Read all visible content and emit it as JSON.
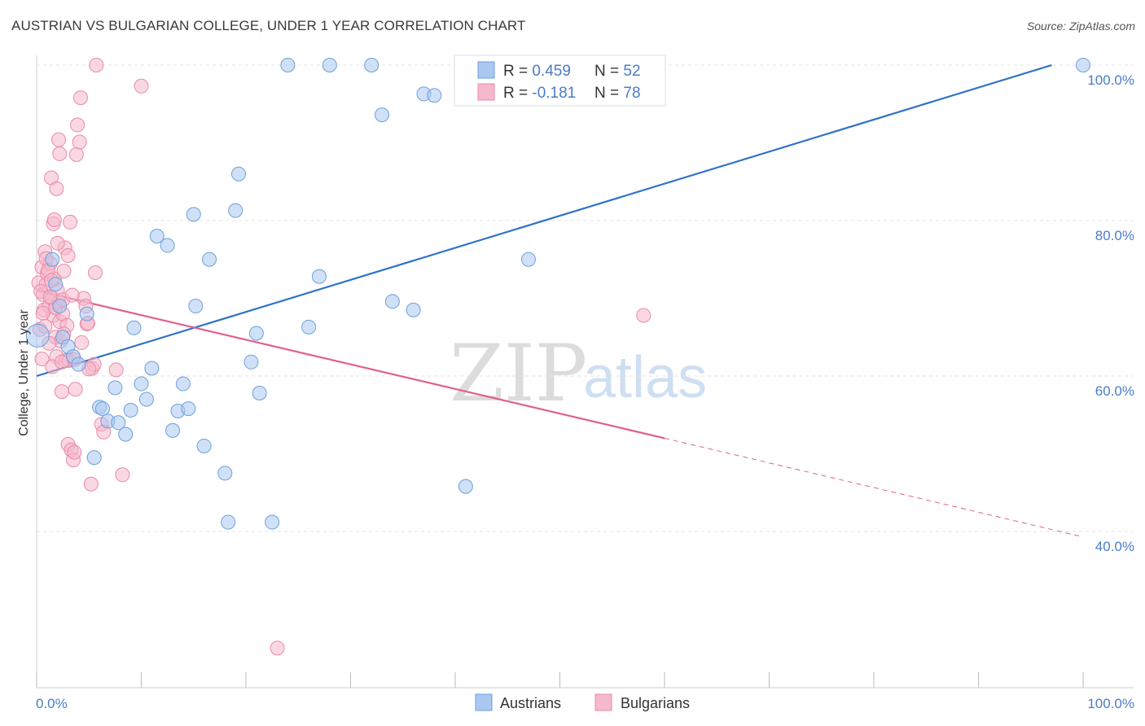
{
  "title": "AUSTRIAN VS BULGARIAN COLLEGE, UNDER 1 YEAR CORRELATION CHART",
  "source": "Source: ZipAtlas.com",
  "watermark": {
    "zip": "ZIP",
    "atlas": "atlas"
  },
  "colors": {
    "blue_fill": "#aac8f0",
    "blue_stroke": "#6e9fdc",
    "blue_line": "#2f72c8",
    "pink_fill": "#f6b8cc",
    "pink_stroke": "#e98aa8",
    "pink_line": "#e0608d",
    "tick_text": "#4a7cc9",
    "grid": "#e3e3e3"
  },
  "legend": {
    "rows": [
      {
        "r_label": "R = ",
        "r_value": "0.459",
        "n_label": "N = ",
        "n_value": "52"
      },
      {
        "r_label": "R = ",
        "r_value": "-0.181",
        "n_label": "N = ",
        "n_value": "78"
      }
    ]
  },
  "bottom_legend": {
    "austrians": "Austrians",
    "bulgarians": "Bulgarians"
  },
  "chart_data": {
    "type": "scatter",
    "title": "AUSTRIAN VS BULGARIAN COLLEGE, UNDER 1 YEAR CORRELATION CHART",
    "xlabel": "",
    "ylabel": "College, Under 1 year",
    "xlim": [
      0,
      100
    ],
    "ylim": [
      20,
      102
    ],
    "x_tick_labels": [
      "0.0%",
      "100.0%"
    ],
    "y_ticks": [
      40,
      60,
      80,
      100
    ],
    "y_tick_labels": [
      "40.0%",
      "60.0%",
      "80.0%",
      "100.0%"
    ],
    "series": [
      {
        "name": "Austrians",
        "r": 0.459,
        "n": 52,
        "trend": {
          "x": [
            0,
            97
          ],
          "y": [
            60,
            100
          ]
        },
        "points": [
          [
            0.1,
            65.2
          ],
          [
            1.5,
            75
          ],
          [
            1.8,
            71.8
          ],
          [
            2.2,
            69
          ],
          [
            2.5,
            65
          ],
          [
            3,
            63.8
          ],
          [
            3.5,
            62.5
          ],
          [
            4,
            61.5
          ],
          [
            4.8,
            68
          ],
          [
            5.5,
            49.5
          ],
          [
            6,
            56
          ],
          [
            6.3,
            55.8
          ],
          [
            6.8,
            54.2
          ],
          [
            7.5,
            58.5
          ],
          [
            7.8,
            54
          ],
          [
            8.5,
            52.5
          ],
          [
            9,
            55.6
          ],
          [
            9.3,
            66.2
          ],
          [
            10,
            59
          ],
          [
            10.5,
            57
          ],
          [
            11,
            61
          ],
          [
            11.5,
            78
          ],
          [
            12.5,
            76.8
          ],
          [
            13,
            53
          ],
          [
            13.5,
            55.5
          ],
          [
            14,
            59
          ],
          [
            14.5,
            55.8
          ],
          [
            15,
            80.8
          ],
          [
            15.2,
            69
          ],
          [
            16,
            51
          ],
          [
            16.5,
            75
          ],
          [
            18,
            47.5
          ],
          [
            18.3,
            41.2
          ],
          [
            19,
            81.3
          ],
          [
            19.3,
            86
          ],
          [
            20.5,
            61.8
          ],
          [
            21,
            65.5
          ],
          [
            21.3,
            57.8
          ],
          [
            22.5,
            41.2
          ],
          [
            24,
            100
          ],
          [
            26,
            66.3
          ],
          [
            27,
            72.8
          ],
          [
            28,
            100
          ],
          [
            32,
            100
          ],
          [
            33,
            93.6
          ],
          [
            34,
            69.6
          ],
          [
            36,
            68.5
          ],
          [
            37,
            96.3
          ],
          [
            38,
            96.1
          ],
          [
            41,
            45.8
          ],
          [
            47,
            75
          ],
          [
            100,
            100
          ]
        ]
      },
      {
        "name": "Bulgarians",
        "r": -0.181,
        "n": 78,
        "trend": {
          "x": [
            0,
            60
          ],
          "y": [
            71,
            52
          ]
        },
        "trend_dashed": {
          "x": [
            60,
            100
          ],
          "y": [
            52,
            39.3
          ]
        },
        "points": [
          [
            0.2,
            72
          ],
          [
            0.3,
            66
          ],
          [
            0.5,
            74
          ],
          [
            0.6,
            70.5
          ],
          [
            0.7,
            68.5
          ],
          [
            0.8,
            76
          ],
          [
            0.9,
            71.8
          ],
          [
            1,
            73.2
          ],
          [
            1.2,
            69
          ],
          [
            1.3,
            74.5
          ],
          [
            1.5,
            70
          ],
          [
            1.6,
            67.8
          ],
          [
            1.7,
            72.5
          ],
          [
            1.8,
            65
          ],
          [
            1.9,
            62.5
          ],
          [
            2,
            71
          ],
          [
            2.1,
            69.5
          ],
          [
            2.2,
            67
          ],
          [
            2.3,
            64.5
          ],
          [
            2.4,
            58
          ],
          [
            2.5,
            68
          ],
          [
            2.6,
            73.5
          ],
          [
            2.7,
            76.5
          ],
          [
            2.8,
            62
          ],
          [
            2.9,
            66.5
          ],
          [
            3,
            51.2
          ],
          [
            3.1,
            62
          ],
          [
            3.3,
            50.5
          ],
          [
            3.5,
            49.2
          ],
          [
            3.6,
            50.2
          ],
          [
            3.7,
            58.3
          ],
          [
            3.8,
            88.5
          ],
          [
            3.9,
            92.3
          ],
          [
            4.1,
            90.1
          ],
          [
            4.2,
            95.8
          ],
          [
            4.5,
            70
          ],
          [
            4.7,
            69
          ],
          [
            4.8,
            66.7
          ],
          [
            5.2,
            46.1
          ],
          [
            5.3,
            61
          ],
          [
            5.5,
            61.5
          ],
          [
            5.6,
            73.3
          ],
          [
            5.7,
            100
          ],
          [
            6.2,
            53.8
          ],
          [
            6.4,
            52.8
          ],
          [
            7.6,
            60.8
          ],
          [
            8.2,
            47.3
          ],
          [
            10,
            97.3
          ],
          [
            1.4,
            85.5
          ],
          [
            1.9,
            84.1
          ],
          [
            1.6,
            79.6
          ],
          [
            1.7,
            80.1
          ],
          [
            2,
            77.1
          ],
          [
            3.2,
            79.8
          ],
          [
            3,
            75.5
          ],
          [
            2.1,
            90.4
          ],
          [
            2.2,
            88.6
          ],
          [
            0.9,
            75.1
          ],
          [
            1.1,
            73.6
          ],
          [
            1.4,
            72.3
          ],
          [
            1.8,
            68.8
          ],
          [
            2.5,
            69.8
          ],
          [
            3.4,
            70.4
          ],
          [
            0.4,
            70.9
          ],
          [
            0.6,
            68.1
          ],
          [
            1.2,
            64.2
          ],
          [
            2.6,
            65.4
          ],
          [
            4.3,
            64.3
          ],
          [
            0.5,
            62.2
          ],
          [
            1.5,
            61.2
          ],
          [
            2.4,
            61.8
          ],
          [
            4.9,
            66.8
          ],
          [
            5,
            60.9
          ],
          [
            1.3,
            70.2
          ],
          [
            0.8,
            66.4
          ],
          [
            23,
            25
          ],
          [
            58,
            67.8
          ],
          [
            3.6,
            62.1
          ]
        ]
      }
    ]
  }
}
